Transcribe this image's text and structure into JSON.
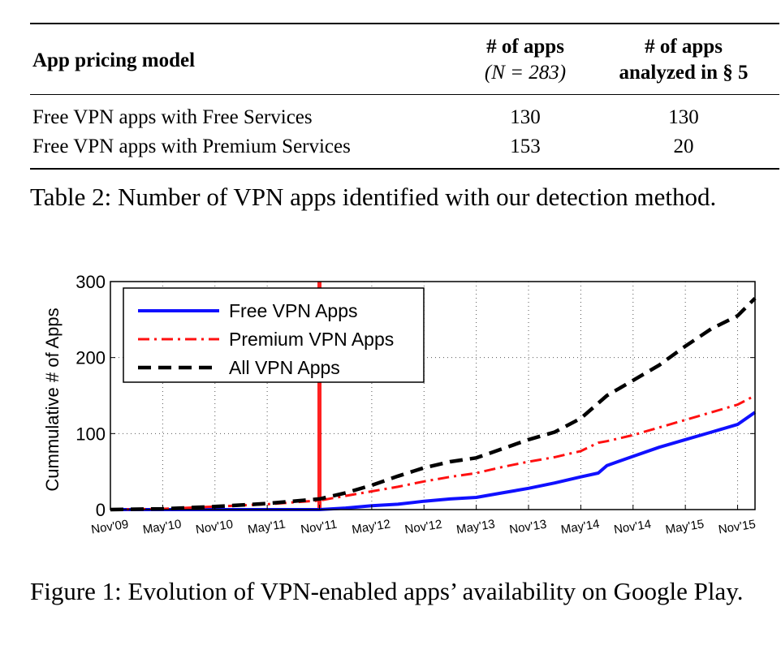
{
  "table": {
    "headers": {
      "col1": "App pricing model",
      "col2_line1": "# of apps",
      "col2_line2": "(N = 283)",
      "col3_line1": "# of apps",
      "col3_line2": "analyzed in § 5"
    },
    "rows": [
      {
        "model": "Free VPN apps with Free Services",
        "apps": "130",
        "analyzed": "130"
      },
      {
        "model": "Free VPN apps with Premium Services",
        "apps": "153",
        "analyzed": "20"
      }
    ],
    "caption": "Table 2: Number of VPN apps identified with our detection method."
  },
  "figure": {
    "caption": "Figure 1: Evolution of VPN-enabled apps’ availability on Google Play."
  },
  "chart_data": {
    "type": "line",
    "title": "",
    "xlabel": "",
    "ylabel": "Cummulative # of Apps",
    "ylim": [
      0,
      300
    ],
    "yticks": [
      0,
      100,
      200,
      300
    ],
    "xlim": [
      0,
      74
    ],
    "xtick_labels": [
      "Nov'09",
      "May'10",
      "Nov'10",
      "May'11",
      "Nov'11",
      "May'12",
      "Nov'12",
      "May'13",
      "Nov'13",
      "May'14",
      "Nov'14",
      "May'15",
      "Nov'15"
    ],
    "xtick_positions": [
      0,
      6,
      12,
      18,
      24,
      30,
      36,
      42,
      48,
      54,
      60,
      66,
      72
    ],
    "grid": true,
    "legend_position": "top-left",
    "annotation": {
      "type": "vertical-line",
      "x_label": "Nov'11",
      "x": 24,
      "color": "#ff2020"
    },
    "x_months_since_nov09": [
      0,
      6,
      12,
      18,
      24,
      27,
      30,
      33,
      36,
      39,
      42,
      45,
      48,
      51,
      54,
      56,
      57,
      60,
      63,
      66,
      69,
      72,
      74
    ],
    "series": [
      {
        "name": "Free VPN Apps",
        "color": "#1010ff",
        "style": "solid",
        "values": [
          0,
          0,
          0,
          0,
          0,
          2,
          5,
          7,
          11,
          14,
          16,
          22,
          28,
          35,
          43,
          48,
          58,
          70,
          82,
          92,
          102,
          112,
          128
        ]
      },
      {
        "name": "Premium VPN Apps",
        "color": "#ff1010",
        "style": "dashdot",
        "values": [
          0,
          1,
          4,
          7,
          12,
          18,
          24,
          30,
          37,
          43,
          48,
          56,
          63,
          69,
          77,
          88,
          90,
          98,
          108,
          118,
          128,
          138,
          150
        ]
      },
      {
        "name": "All VPN Apps",
        "color": "#000000",
        "style": "dashed",
        "values": [
          0,
          1,
          4,
          8,
          14,
          22,
          32,
          44,
          55,
          63,
          68,
          80,
          92,
          102,
          120,
          140,
          150,
          170,
          190,
          215,
          238,
          255,
          278
        ]
      }
    ]
  }
}
